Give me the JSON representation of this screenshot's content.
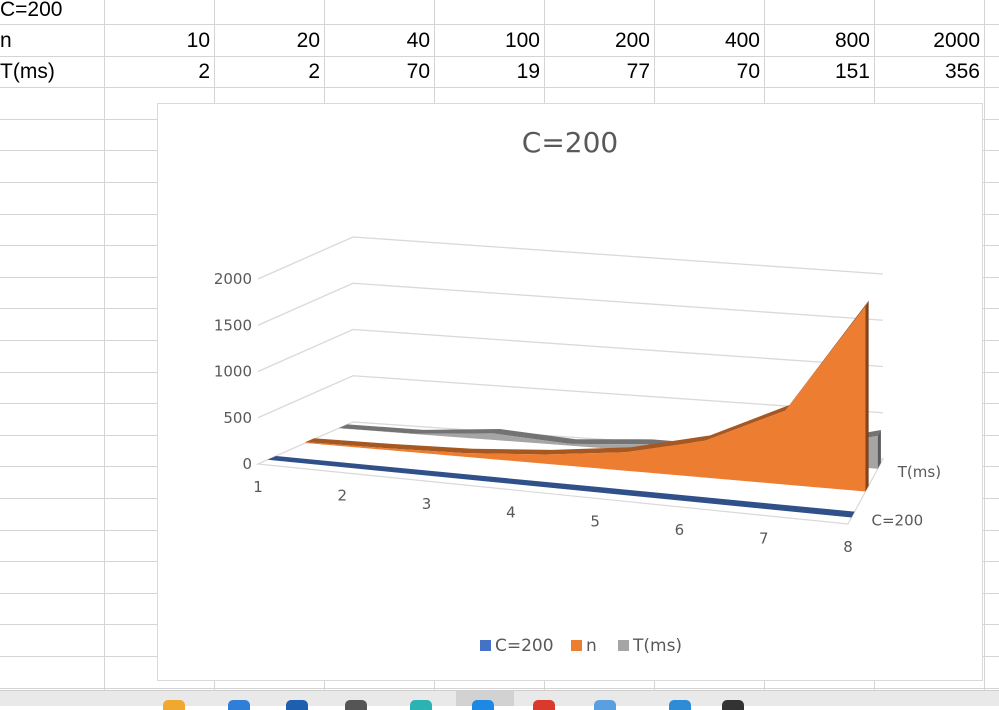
{
  "sheet": {
    "row1": {
      "label": "C=200"
    },
    "row2": {
      "label": "n",
      "values": [
        "10",
        "20",
        "40",
        "100",
        "200",
        "400",
        "800",
        "2000"
      ]
    },
    "row3": {
      "label": "T(ms)",
      "values": [
        "2",
        "2",
        "70",
        "19",
        "77",
        "70",
        "151",
        "356"
      ]
    }
  },
  "chart_data": {
    "type": "area",
    "title": "C=200",
    "three_d": true,
    "categories": [
      "1",
      "2",
      "3",
      "4",
      "5",
      "6",
      "7",
      "8"
    ],
    "series": [
      {
        "name": "C=200",
        "values": [
          0,
          0,
          0,
          0,
          0,
          0,
          0,
          0
        ],
        "color": "#4472C4"
      },
      {
        "name": "n",
        "values": [
          10,
          20,
          40,
          100,
          200,
          400,
          800,
          2000
        ],
        "color": "#ED7D31"
      },
      {
        "name": "T(ms)",
        "values": [
          2,
          2,
          70,
          19,
          77,
          70,
          151,
          356
        ],
        "color": "#A5A5A5"
      }
    ],
    "y_ticks": [
      "0",
      "500",
      "1000",
      "1500",
      "2000"
    ],
    "ylim": [
      0,
      2000
    ],
    "depth_labels": [
      "T(ms)",
      "C=200"
    ],
    "legend": {
      "position": "bottom",
      "labels": [
        "C=200",
        "n",
        "T(ms)"
      ]
    },
    "grid": true
  },
  "taskbar": {
    "icon_colors": [
      "#f0a830",
      "#2f7fd8",
      "#1f5fb0",
      "#555555",
      "#2bb3b3",
      "#1e88e5",
      "#d93a2b",
      "#5aa0e0",
      "#2e8bd6",
      "#333333"
    ]
  }
}
